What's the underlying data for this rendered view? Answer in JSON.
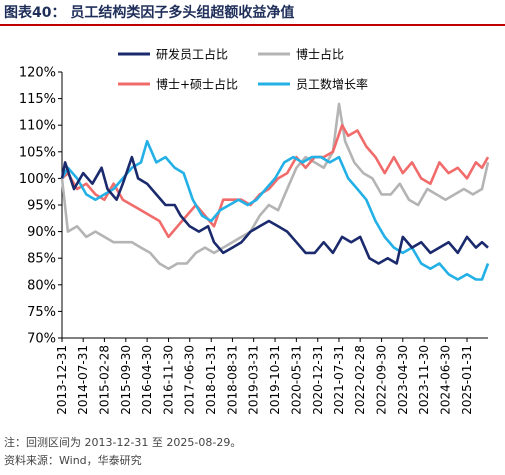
{
  "title": "图表40：  员工结构类因子多头组超额收益净值",
  "footnote": "注：回测区间为 2013-12-31 至 2025-08-29。",
  "source": "资料来源：Wind，华泰研究",
  "chart_data": {
    "type": "line",
    "y_unit": "%",
    "ylim": [
      70,
      120
    ],
    "y_ticks": [
      "120%",
      "115%",
      "110%",
      "105%",
      "100%",
      "95%",
      "90%",
      "85%",
      "80%",
      "75%",
      "70%"
    ],
    "x_ticks": [
      "2013-12-31",
      "2014-07-31",
      "2015-02-28",
      "2015-09-30",
      "2016-04-30",
      "2016-11-30",
      "2017-06-30",
      "2018-01-31",
      "2018-08-31",
      "2019-03-31",
      "2019-10-31",
      "2020-05-31",
      "2020-12-31",
      "2021-07-31",
      "2022-02-28",
      "2022-09-30",
      "2023-04-30",
      "2023-11-30",
      "2024-06-30",
      "2025-01-31"
    ],
    "x_range": [
      "2013-12-31",
      "2025-08-29"
    ],
    "grid": false,
    "legend_position": "top-left",
    "series": [
      {
        "name": "研发员工占比",
        "color": "#1a2a6c",
        "points": [
          [
            "2013-12-31",
            100
          ],
          [
            "2014-01-31",
            103
          ],
          [
            "2014-04-30",
            98
          ],
          [
            "2014-07-31",
            101
          ],
          [
            "2014-10-31",
            99
          ],
          [
            "2015-01-31",
            102
          ],
          [
            "2015-03-31",
            98
          ],
          [
            "2015-06-30",
            96
          ],
          [
            "2015-08-31",
            99
          ],
          [
            "2015-11-30",
            104
          ],
          [
            "2016-01-31",
            100
          ],
          [
            "2016-04-30",
            99
          ],
          [
            "2016-07-31",
            97
          ],
          [
            "2016-10-31",
            95
          ],
          [
            "2017-01-31",
            95
          ],
          [
            "2017-03-31",
            93
          ],
          [
            "2017-06-30",
            91
          ],
          [
            "2017-09-30",
            90
          ],
          [
            "2017-12-31",
            91
          ],
          [
            "2018-02-28",
            88
          ],
          [
            "2018-05-31",
            86
          ],
          [
            "2018-08-31",
            87
          ],
          [
            "2018-11-30",
            88
          ],
          [
            "2019-02-28",
            90
          ],
          [
            "2019-05-31",
            91
          ],
          [
            "2019-08-31",
            92
          ],
          [
            "2019-11-30",
            91
          ],
          [
            "2020-02-29",
            90
          ],
          [
            "2020-05-31",
            88
          ],
          [
            "2020-08-31",
            86
          ],
          [
            "2020-11-30",
            86
          ],
          [
            "2021-02-28",
            88
          ],
          [
            "2021-05-31",
            86
          ],
          [
            "2021-08-31",
            89
          ],
          [
            "2021-11-30",
            88
          ],
          [
            "2022-02-28",
            89
          ],
          [
            "2022-05-31",
            85
          ],
          [
            "2022-08-31",
            84
          ],
          [
            "2022-11-30",
            85
          ],
          [
            "2023-02-28",
            84
          ],
          [
            "2023-04-30",
            89
          ],
          [
            "2023-07-31",
            87
          ],
          [
            "2023-10-31",
            88
          ],
          [
            "2024-01-31",
            86
          ],
          [
            "2024-04-30",
            87
          ],
          [
            "2024-07-31",
            88
          ],
          [
            "2024-10-31",
            86
          ],
          [
            "2025-01-31",
            89
          ],
          [
            "2025-04-30",
            87
          ],
          [
            "2025-06-30",
            88
          ],
          [
            "2025-08-29",
            87
          ]
        ]
      },
      {
        "name": "博士占比",
        "color": "#b4b4b4",
        "points": [
          [
            "2013-12-31",
            100
          ],
          [
            "2014-02-28",
            90
          ],
          [
            "2014-05-31",
            91
          ],
          [
            "2014-08-31",
            89
          ],
          [
            "2014-11-30",
            90
          ],
          [
            "2015-02-28",
            89
          ],
          [
            "2015-05-31",
            88
          ],
          [
            "2015-08-31",
            88
          ],
          [
            "2015-11-30",
            88
          ],
          [
            "2016-02-29",
            87
          ],
          [
            "2016-05-31",
            86
          ],
          [
            "2016-08-31",
            84
          ],
          [
            "2016-11-30",
            83
          ],
          [
            "2017-02-28",
            84
          ],
          [
            "2017-05-31",
            84
          ],
          [
            "2017-08-31",
            86
          ],
          [
            "2017-11-30",
            87
          ],
          [
            "2018-02-28",
            86
          ],
          [
            "2018-05-31",
            87
          ],
          [
            "2018-08-31",
            88
          ],
          [
            "2018-11-30",
            89
          ],
          [
            "2019-02-28",
            90
          ],
          [
            "2019-05-31",
            93
          ],
          [
            "2019-08-31",
            95
          ],
          [
            "2019-11-30",
            94
          ],
          [
            "2020-02-29",
            98
          ],
          [
            "2020-05-31",
            102
          ],
          [
            "2020-08-31",
            104
          ],
          [
            "2020-11-30",
            103
          ],
          [
            "2021-02-28",
            102
          ],
          [
            "2021-05-31",
            105
          ],
          [
            "2021-07-31",
            114
          ],
          [
            "2021-09-30",
            107
          ],
          [
            "2021-12-31",
            103
          ],
          [
            "2022-03-31",
            101
          ],
          [
            "2022-06-30",
            100
          ],
          [
            "2022-09-30",
            97
          ],
          [
            "2022-12-31",
            97
          ],
          [
            "2023-03-31",
            99
          ],
          [
            "2023-06-30",
            96
          ],
          [
            "2023-09-30",
            95
          ],
          [
            "2023-12-31",
            98
          ],
          [
            "2024-03-31",
            97
          ],
          [
            "2024-06-30",
            96
          ],
          [
            "2024-09-30",
            97
          ],
          [
            "2024-12-31",
            98
          ],
          [
            "2025-03-31",
            97
          ],
          [
            "2025-06-30",
            98
          ],
          [
            "2025-08-29",
            103
          ]
        ]
      },
      {
        "name": "博士+硕士占比",
        "color": "#f26b6b",
        "points": [
          [
            "2013-12-31",
            100
          ],
          [
            "2014-02-28",
            101
          ],
          [
            "2014-05-31",
            98
          ],
          [
            "2014-08-31",
            99
          ],
          [
            "2014-11-30",
            97
          ],
          [
            "2015-02-28",
            96
          ],
          [
            "2015-05-31",
            99
          ],
          [
            "2015-08-31",
            96
          ],
          [
            "2015-11-30",
            95
          ],
          [
            "2016-02-29",
            94
          ],
          [
            "2016-05-31",
            93
          ],
          [
            "2016-08-31",
            92
          ],
          [
            "2016-11-30",
            89
          ],
          [
            "2017-02-28",
            91
          ],
          [
            "2017-05-31",
            93
          ],
          [
            "2017-08-31",
            95
          ],
          [
            "2017-11-30",
            93
          ],
          [
            "2018-02-28",
            91
          ],
          [
            "2018-05-31",
            96
          ],
          [
            "2018-08-31",
            96
          ],
          [
            "2018-11-30",
            96
          ],
          [
            "2019-02-28",
            95
          ],
          [
            "2019-05-31",
            97
          ],
          [
            "2019-08-31",
            98
          ],
          [
            "2019-11-30",
            100
          ],
          [
            "2020-02-29",
            101
          ],
          [
            "2020-05-31",
            104
          ],
          [
            "2020-08-31",
            102
          ],
          [
            "2020-11-30",
            104
          ],
          [
            "2021-02-28",
            104
          ],
          [
            "2021-05-31",
            105
          ],
          [
            "2021-08-31",
            110
          ],
          [
            "2021-10-31",
            108
          ],
          [
            "2022-01-31",
            109
          ],
          [
            "2022-04-30",
            106
          ],
          [
            "2022-07-31",
            104
          ],
          [
            "2022-10-31",
            101
          ],
          [
            "2023-01-31",
            104
          ],
          [
            "2023-04-30",
            101
          ],
          [
            "2023-07-31",
            103
          ],
          [
            "2023-10-31",
            100
          ],
          [
            "2024-01-31",
            99
          ],
          [
            "2024-04-30",
            103
          ],
          [
            "2024-07-31",
            101
          ],
          [
            "2024-10-31",
            102
          ],
          [
            "2025-01-31",
            100
          ],
          [
            "2025-04-30",
            103
          ],
          [
            "2025-06-30",
            102
          ],
          [
            "2025-08-29",
            104
          ]
        ]
      },
      {
        "name": "员工数增长率",
        "color": "#22b0e6",
        "points": [
          [
            "2013-12-31",
            100
          ],
          [
            "2014-02-28",
            102
          ],
          [
            "2014-05-31",
            100
          ],
          [
            "2014-08-31",
            97
          ],
          [
            "2014-11-30",
            96
          ],
          [
            "2015-02-28",
            97
          ],
          [
            "2015-05-31",
            98
          ],
          [
            "2015-08-31",
            100
          ],
          [
            "2015-11-30",
            102
          ],
          [
            "2016-02-29",
            103
          ],
          [
            "2016-04-30",
            107
          ],
          [
            "2016-07-31",
            103
          ],
          [
            "2016-10-31",
            104
          ],
          [
            "2017-01-31",
            102
          ],
          [
            "2017-04-30",
            101
          ],
          [
            "2017-07-31",
            96
          ],
          [
            "2017-10-31",
            93
          ],
          [
            "2018-01-31",
            92
          ],
          [
            "2018-04-30",
            94
          ],
          [
            "2018-07-31",
            95
          ],
          [
            "2018-10-31",
            96
          ],
          [
            "2019-01-31",
            95
          ],
          [
            "2019-04-30",
            96
          ],
          [
            "2019-07-31",
            98
          ],
          [
            "2019-10-31",
            100
          ],
          [
            "2020-01-31",
            103
          ],
          [
            "2020-04-30",
            104
          ],
          [
            "2020-07-31",
            103
          ],
          [
            "2020-10-31",
            104
          ],
          [
            "2021-01-31",
            104
          ],
          [
            "2021-04-30",
            103
          ],
          [
            "2021-07-31",
            104
          ],
          [
            "2021-10-31",
            100
          ],
          [
            "2022-01-31",
            98
          ],
          [
            "2022-04-30",
            96
          ],
          [
            "2022-07-31",
            92
          ],
          [
            "2022-10-31",
            89
          ],
          [
            "2023-01-31",
            87
          ],
          [
            "2023-04-30",
            86
          ],
          [
            "2023-07-31",
            87
          ],
          [
            "2023-10-31",
            84
          ],
          [
            "2024-01-31",
            83
          ],
          [
            "2024-04-30",
            84
          ],
          [
            "2024-07-31",
            82
          ],
          [
            "2024-10-31",
            81
          ],
          [
            "2025-01-31",
            82
          ],
          [
            "2025-04-30",
            81
          ],
          [
            "2025-06-30",
            81
          ],
          [
            "2025-08-29",
            84
          ]
        ]
      }
    ]
  }
}
